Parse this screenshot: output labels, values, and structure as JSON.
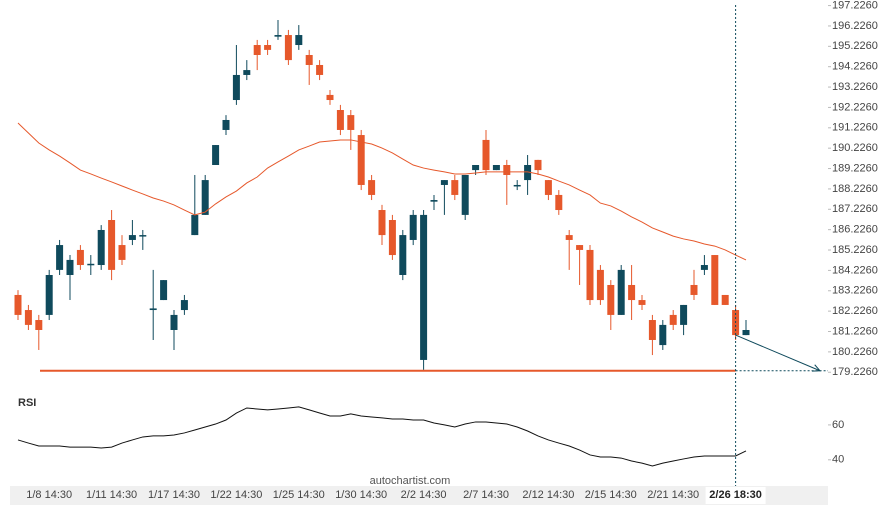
{
  "chart_data": {
    "type": "candlestick",
    "categories": [
      null,
      null,
      null,
      "1/8 14:30",
      null,
      null,
      null,
      null,
      null,
      "1/11 14:30",
      null,
      null,
      null,
      null,
      null,
      "1/17 14:30",
      null,
      null,
      null,
      null,
      null,
      "1/22 14:30",
      null,
      null,
      null,
      null,
      null,
      "1/25 14:30",
      null,
      null,
      null,
      null,
      null,
      "1/30 14:30",
      null,
      null,
      null,
      null,
      null,
      "2/2 14:30",
      null,
      null,
      null,
      null,
      null,
      "2/7 14:30",
      null,
      null,
      null,
      null,
      null,
      "2/12 14:30",
      null,
      null,
      null,
      null,
      null,
      "2/15 14:30",
      null,
      null,
      null,
      null,
      null,
      "2/21 14:30",
      null,
      null,
      null,
      null,
      null,
      "2/26 18:30",
      null
    ],
    "open": [
      183.02,
      182.28,
      181.79,
      182.04,
      184.25,
      184.0,
      185.23,
      184.49,
      184.49,
      186.7,
      185.47,
      185.72,
      185.9,
      182.28,
      182.77,
      181.3,
      182.28,
      185.96,
      186.95,
      189.4,
      191.12,
      192.59,
      193.82,
      195.29,
      195.29,
      195.7,
      195.78,
      195.29,
      194.8,
      194.31,
      192.84,
      192.1,
      191.85,
      190.87,
      188.66,
      187.19,
      186.7,
      184.0,
      185.72,
      179.83,
      187.6,
      188.42,
      188.66,
      186.95,
      189.15,
      190.63,
      189.15,
      189.4,
      188.36,
      188.66,
      189.65,
      188.66,
      187.93,
      185.96,
      185.47,
      185.23,
      184.25,
      183.51,
      182.04,
      183.51,
      182.77,
      181.79,
      180.56,
      182.04,
      181.55,
      183.51,
      184.25,
      184.98,
      183.02,
      182.28,
      181.05
    ],
    "high": [
      183.26,
      182.53,
      182.04,
      184.25,
      185.72,
      184.98,
      185.47,
      184.98,
      186.45,
      187.19,
      185.96,
      186.7,
      186.21,
      184.25,
      183.75,
      182.28,
      183.02,
      188.91,
      188.91,
      190.38,
      191.85,
      195.29,
      194.55,
      195.54,
      195.54,
      196.52,
      196.03,
      196.27,
      195.05,
      194.55,
      193.08,
      192.35,
      192.1,
      191.12,
      188.91,
      187.44,
      186.95,
      186.21,
      187.19,
      187.19,
      187.93,
      188.66,
      188.91,
      188.91,
      189.4,
      191.12,
      189.4,
      189.65,
      188.66,
      189.89,
      189.65,
      188.66,
      188.17,
      186.21,
      185.47,
      185.47,
      184.49,
      183.75,
      184.49,
      184.49,
      183.02,
      182.04,
      181.79,
      182.28,
      182.53,
      184.25,
      184.98,
      184.98,
      183.02,
      182.53,
      181.79
    ],
    "low": [
      181.79,
      181.3,
      180.32,
      181.79,
      184.0,
      182.77,
      184.25,
      184.0,
      184.25,
      183.75,
      184.49,
      185.47,
      185.23,
      180.81,
      182.77,
      180.32,
      182.04,
      185.96,
      186.95,
      189.4,
      190.87,
      192.35,
      193.57,
      194.06,
      194.8,
      195.54,
      194.31,
      195.05,
      193.33,
      193.57,
      192.35,
      190.87,
      190.14,
      188.17,
      187.68,
      185.47,
      184.74,
      183.75,
      185.47,
      179.34,
      187.19,
      186.95,
      187.68,
      186.7,
      188.91,
      188.91,
      189.15,
      187.44,
      188.17,
      187.93,
      188.91,
      187.68,
      186.95,
      184.25,
      183.51,
      182.53,
      182.53,
      181.3,
      182.04,
      181.79,
      182.28,
      180.07,
      180.32,
      181.3,
      181.05,
      182.77,
      184.0,
      182.53,
      182.53,
      180.81,
      181.05
    ],
    "close": [
      182.04,
      181.55,
      181.3,
      184.0,
      185.47,
      184.74,
      184.49,
      184.55,
      186.21,
      184.25,
      184.74,
      185.96,
      185.96,
      182.36,
      183.75,
      182.04,
      182.77,
      186.95,
      188.66,
      190.38,
      191.61,
      193.82,
      194.06,
      194.8,
      195.05,
      195.78,
      194.55,
      195.78,
      194.31,
      193.82,
      192.59,
      191.12,
      191.12,
      188.42,
      187.93,
      185.96,
      184.98,
      185.96,
      186.95,
      186.95,
      187.68,
      188.66,
      187.93,
      188.91,
      189.4,
      189.15,
      189.4,
      188.91,
      188.42,
      189.4,
      189.15,
      187.93,
      187.19,
      185.72,
      185.23,
      182.77,
      182.77,
      182.04,
      184.25,
      182.77,
      182.53,
      180.81,
      181.55,
      181.55,
      182.53,
      183.02,
      184.49,
      182.53,
      182.53,
      181.05,
      181.3
    ],
    "up_color": "#0f4a5c",
    "down_color": "#e6582b",
    "ylim": [
      178.6,
      197.5
    ],
    "yticks": [
      {
        "value": 179.226,
        "label": "179.2260"
      },
      {
        "value": 180.226,
        "label": "180.2260"
      },
      {
        "value": 181.226,
        "label": "181.2260"
      },
      {
        "value": 182.226,
        "label": "182.2260"
      },
      {
        "value": 183.226,
        "label": "183.2260"
      },
      {
        "value": 184.226,
        "label": "184.2260"
      },
      {
        "value": 185.226,
        "label": "185.2260"
      },
      {
        "value": 186.226,
        "label": "186.2260"
      },
      {
        "value": 187.226,
        "label": "187.2260"
      },
      {
        "value": 188.226,
        "label": "188.2260"
      },
      {
        "value": 189.226,
        "label": "189.2260"
      },
      {
        "value": 190.226,
        "label": "190.2260"
      },
      {
        "value": 191.226,
        "label": "191.2260"
      },
      {
        "value": 192.226,
        "label": "192.2260"
      },
      {
        "value": 193.226,
        "label": "193.2260"
      },
      {
        "value": 194.226,
        "label": "194.2260"
      },
      {
        "value": 195.226,
        "label": "195.2260"
      },
      {
        "value": 196.226,
        "label": "196.2260"
      },
      {
        "value": 197.226,
        "label": "197.2260"
      }
    ],
    "moving_average": {
      "color": "#e6582b",
      "values": [
        191.46,
        190.97,
        190.48,
        190.14,
        189.84,
        189.5,
        189.15,
        188.96,
        188.76,
        188.57,
        188.37,
        188.17,
        187.98,
        187.78,
        187.63,
        187.44,
        187.19,
        186.95,
        187.09,
        187.49,
        187.83,
        188.12,
        188.52,
        188.81,
        189.25,
        189.55,
        189.84,
        190.14,
        190.33,
        190.53,
        190.58,
        190.63,
        190.63,
        190.53,
        190.43,
        190.23,
        189.99,
        189.69,
        189.4,
        189.25,
        189.15,
        189.06,
        188.96,
        188.96,
        189.01,
        189.06,
        189.06,
        189.06,
        189.06,
        189.06,
        188.96,
        188.81,
        188.61,
        188.42,
        188.17,
        187.93,
        187.53,
        187.39,
        187.14,
        186.85,
        186.6,
        186.31,
        186.11,
        185.91,
        185.77,
        185.67,
        185.52,
        185.42,
        185.23,
        184.98,
        184.74
      ]
    },
    "support_level": 179.3,
    "level_color": "#e6582b",
    "rsi": {
      "title": "RSI",
      "color": "#111111",
      "ylim": [
        25,
        80
      ],
      "yticks": [
        40,
        60
      ],
      "values": [
        51.4,
        49.6,
        47.9,
        47.9,
        47.9,
        47.3,
        47.3,
        47.3,
        46.8,
        47.3,
        49.6,
        51.4,
        53.1,
        53.7,
        53.7,
        54.2,
        55.4,
        57.1,
        58.8,
        60.5,
        62.8,
        66.8,
        69.7,
        69.1,
        68.6,
        69.1,
        69.7,
        70.3,
        68.6,
        66.8,
        65.1,
        65.1,
        66.3,
        65.1,
        64.5,
        64.0,
        63.4,
        63.4,
        62.8,
        62.8,
        61.1,
        60.0,
        58.8,
        60.5,
        61.7,
        61.7,
        61.1,
        60.5,
        58.8,
        56.5,
        53.7,
        51.4,
        49.6,
        47.9,
        45.6,
        42.8,
        41.6,
        41.6,
        41.0,
        39.3,
        38.1,
        36.5,
        38.1,
        39.3,
        40.5,
        41.6,
        42.2,
        42.2,
        42.2,
        42.2,
        45.1
      ]
    },
    "source": "autochartist.com"
  }
}
